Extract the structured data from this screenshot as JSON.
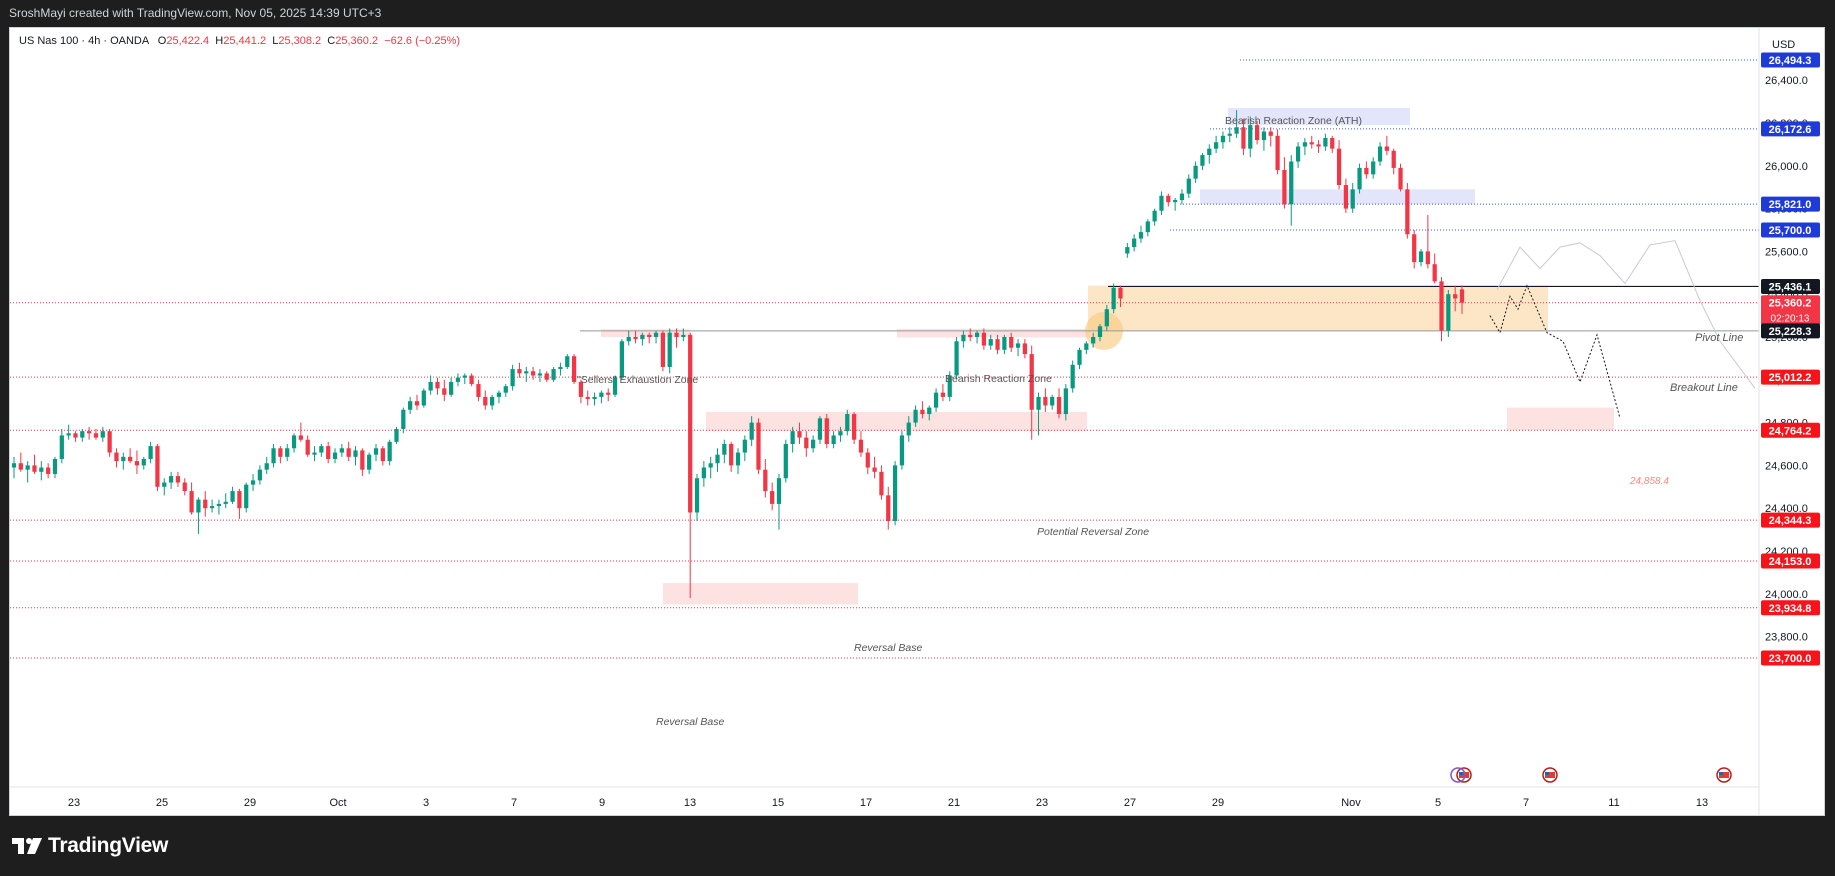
{
  "header": {
    "attribution": "SroshMayi created with TradingView.com, Nov 05, 2025 14:39 UTC+3"
  },
  "symbol": {
    "name": "US Nas 100 · 4h · OANDA",
    "o_label": "O",
    "o": "25,422.4",
    "h_label": "H",
    "h": "25,441.2",
    "l_label": "L",
    "l": "25,308.2",
    "c_label": "C",
    "c": "25,360.2",
    "change": "−62.6 (−0.25%)"
  },
  "footer": {
    "brand": "TradingView"
  },
  "colors": {
    "up": "#089981",
    "down": "#f23645",
    "axis_text": "#131722",
    "blue_badge": "#1e3bd8",
    "red_badge": "#f7131a",
    "black_badge": "#131722",
    "zone_pink": "#fde2e2",
    "zone_blue": "#e3e6fb",
    "zone_orange": "#fde6c6"
  },
  "chart_data": {
    "type": "candlestick",
    "timeframe": "4h",
    "currency": "USD",
    "ylim": [
      23650,
      26650
    ],
    "y_ticks": [
      "23,800.0",
      "24,000.0",
      "24,200.0",
      "24,400.0",
      "24,600.0",
      "24,800.0",
      "25,000.0",
      "25,200.0",
      "25,400.0",
      "25,600.0",
      "25,800.0",
      "26,000.0",
      "26,200.0",
      "26,400.0"
    ],
    "x_ticks": [
      "23",
      "25",
      "29",
      "Oct",
      "3",
      "7",
      "9",
      "13",
      "15",
      "17",
      "21",
      "23",
      "27",
      "29",
      "Nov",
      "5",
      "7",
      "11",
      "13"
    ],
    "price_labels": [
      {
        "text": "26,494.3",
        "value": 26494.3,
        "style": "blue"
      },
      {
        "text": "26,172.6",
        "value": 26172.6,
        "style": "blue"
      },
      {
        "text": "25,821.0",
        "value": 25821.0,
        "style": "blue"
      },
      {
        "text": "25,700.0",
        "value": 25700.0,
        "style": "blue"
      },
      {
        "text": "25,436.1",
        "value": 25436.1,
        "style": "black"
      },
      {
        "text": "25,360.2",
        "value": 25360.2,
        "style": "current",
        "countdown": "02:20:13"
      },
      {
        "text": "25,228.3",
        "value": 25228.3,
        "style": "black"
      },
      {
        "text": "25,012.2",
        "value": 25012.2,
        "style": "red"
      },
      {
        "text": "24,764.2",
        "value": 24764.2,
        "style": "red"
      },
      {
        "text": "24,344.3",
        "value": 24344.3,
        "style": "red"
      },
      {
        "text": "24,153.0",
        "value": 24153.0,
        "style": "red"
      },
      {
        "text": "23,934.8",
        "value": 23934.8,
        "style": "red"
      },
      {
        "text": "23,700.0",
        "value": 23700.0,
        "style": "red"
      }
    ],
    "annotations": {
      "ath_zone": "Bearish Reaction Zone (ATH)",
      "sellers_zone": "\"Sellers\" Exhaustion Zone",
      "bearish_zone": "Bearish Reaction Zone",
      "potential_reversal": "Potential Reversal Zone",
      "reversal_base_1": "Reversal Base",
      "reversal_base_2": "Reversal Base",
      "pivot_line": "Pivot Line",
      "breakout_line": "Breakout Line",
      "target": "24,858.4"
    },
    "candles": [
      [
        24590,
        24640,
        24540,
        24610
      ],
      [
        24610,
        24660,
        24570,
        24580
      ],
      [
        24580,
        24620,
        24520,
        24600
      ],
      [
        24600,
        24650,
        24560,
        24570
      ],
      [
        24570,
        24620,
        24530,
        24590
      ],
      [
        24590,
        24610,
        24540,
        24560
      ],
      [
        24560,
        24640,
        24540,
        24630
      ],
      [
        24630,
        24770,
        24610,
        24740
      ],
      [
        24740,
        24790,
        24720,
        24750
      ],
      [
        24750,
        24760,
        24710,
        24730
      ],
      [
        24730,
        24770,
        24710,
        24760
      ],
      [
        24760,
        24780,
        24720,
        24750
      ],
      [
        24750,
        24770,
        24720,
        24730
      ],
      [
        24730,
        24780,
        24710,
        24760
      ],
      [
        24760,
        24770,
        24640,
        24660
      ],
      [
        24660,
        24680,
        24590,
        24620
      ],
      [
        24620,
        24660,
        24580,
        24640
      ],
      [
        24640,
        24680,
        24610,
        24620
      ],
      [
        24620,
        24670,
        24560,
        24600
      ],
      [
        24600,
        24640,
        24580,
        24630
      ],
      [
        24630,
        24710,
        24610,
        24690
      ],
      [
        24690,
        24700,
        24480,
        24500
      ],
      [
        24500,
        24540,
        24460,
        24520
      ],
      [
        24520,
        24570,
        24490,
        24550
      ],
      [
        24550,
        24570,
        24500,
        24520
      ],
      [
        24520,
        24540,
        24460,
        24480
      ],
      [
        24480,
        24520,
        24370,
        24380
      ],
      [
        24380,
        24450,
        24280,
        24440
      ],
      [
        24440,
        24480,
        24360,
        24400
      ],
      [
        24400,
        24440,
        24380,
        24410
      ],
      [
        24410,
        24440,
        24370,
        24420
      ],
      [
        24420,
        24470,
        24400,
        24430
      ],
      [
        24430,
        24500,
        24420,
        24480
      ],
      [
        24480,
        24490,
        24350,
        24400
      ],
      [
        24400,
        24520,
        24380,
        24510
      ],
      [
        24510,
        24560,
        24480,
        24530
      ],
      [
        24530,
        24600,
        24510,
        24580
      ],
      [
        24580,
        24640,
        24560,
        24610
      ],
      [
        24610,
        24700,
        24590,
        24680
      ],
      [
        24680,
        24690,
        24610,
        24640
      ],
      [
        24640,
        24700,
        24620,
        24680
      ],
      [
        24680,
        24750,
        24660,
        24740
      ],
      [
        24740,
        24800,
        24710,
        24720
      ],
      [
        24720,
        24740,
        24640,
        24650
      ],
      [
        24650,
        24690,
        24620,
        24660
      ],
      [
        24660,
        24700,
        24640,
        24690
      ],
      [
        24690,
        24710,
        24610,
        24630
      ],
      [
        24630,
        24680,
        24610,
        24660
      ],
      [
        24660,
        24700,
        24640,
        24680
      ],
      [
        24680,
        24710,
        24620,
        24640
      ],
      [
        24640,
        24690,
        24600,
        24670
      ],
      [
        24670,
        24680,
        24550,
        24580
      ],
      [
        24580,
        24660,
        24560,
        24650
      ],
      [
        24650,
        24700,
        24620,
        24680
      ],
      [
        24680,
        24690,
        24600,
        24620
      ],
      [
        24620,
        24720,
        24600,
        24710
      ],
      [
        24710,
        24780,
        24700,
        24770
      ],
      [
        24770,
        24870,
        24750,
        24860
      ],
      [
        24860,
        24920,
        24840,
        24900
      ],
      [
        24900,
        24930,
        24860,
        24880
      ],
      [
        24880,
        24960,
        24870,
        24950
      ],
      [
        24950,
        25020,
        24930,
        24990
      ],
      [
        24990,
        25010,
        24930,
        24960
      ],
      [
        24960,
        25000,
        24900,
        24930
      ],
      [
        24930,
        25010,
        24920,
        24990
      ],
      [
        24990,
        25030,
        24970,
        25010
      ],
      [
        25010,
        25030,
        24980,
        25020
      ],
      [
        25020,
        25030,
        24970,
        24980
      ],
      [
        24980,
        25000,
        24900,
        24920
      ],
      [
        24920,
        24950,
        24860,
        24880
      ],
      [
        24880,
        24930,
        24860,
        24920
      ],
      [
        24920,
        24950,
        24890,
        24940
      ],
      [
        24940,
        24980,
        24920,
        24970
      ],
      [
        24970,
        25070,
        24950,
        25050
      ],
      [
        25050,
        25080,
        25010,
        25030
      ],
      [
        25030,
        25060,
        24990,
        25040
      ],
      [
        25040,
        25060,
        25000,
        25020
      ],
      [
        25020,
        25050,
        24990,
        25030
      ],
      [
        25030,
        25040,
        24990,
        25000
      ],
      [
        25000,
        25060,
        24990,
        25050
      ],
      [
        25050,
        25080,
        25020,
        25060
      ],
      [
        25060,
        25120,
        25050,
        25110
      ],
      [
        25110,
        25120,
        24980,
        24990
      ],
      [
        24990,
        25000,
        24890,
        24920
      ],
      [
        24920,
        24950,
        24880,
        24910
      ],
      [
        24910,
        24940,
        24880,
        24920
      ],
      [
        24920,
        24950,
        24890,
        24940
      ],
      [
        24940,
        24960,
        24900,
        24930
      ],
      [
        24930,
        25020,
        24920,
        25010
      ],
      [
        25010,
        25190,
        25000,
        25180
      ],
      [
        25180,
        25230,
        25160,
        25200
      ],
      [
        25200,
        25230,
        25170,
        25190
      ],
      [
        25190,
        25220,
        25160,
        25210
      ],
      [
        25210,
        25220,
        25170,
        25200
      ],
      [
        25200,
        25230,
        25170,
        25220
      ],
      [
        25220,
        25230,
        25040,
        25060
      ],
      [
        25060,
        25240,
        25030,
        25220
      ],
      [
        25220,
        25240,
        25150,
        25200
      ],
      [
        25200,
        25240,
        25180,
        25210
      ],
      [
        25210,
        25220,
        23980,
        24380
      ],
      [
        24380,
        24560,
        24340,
        24540
      ],
      [
        24540,
        24620,
        24500,
        24590
      ],
      [
        24590,
        24640,
        24540,
        24610
      ],
      [
        24610,
        24680,
        24570,
        24650
      ],
      [
        24650,
        24720,
        24610,
        24700
      ],
      [
        24700,
        24710,
        24570,
        24600
      ],
      [
        24600,
        24680,
        24560,
        24660
      ],
      [
        24660,
        24740,
        24620,
        24720
      ],
      [
        24720,
        24830,
        24690,
        24800
      ],
      [
        24800,
        24820,
        24560,
        24580
      ],
      [
        24580,
        24630,
        24450,
        24480
      ],
      [
        24480,
        24520,
        24390,
        24420
      ],
      [
        24420,
        24560,
        24300,
        24540
      ],
      [
        24540,
        24720,
        24520,
        24700
      ],
      [
        24700,
        24780,
        24660,
        24760
      ],
      [
        24760,
        24800,
        24700,
        24730
      ],
      [
        24730,
        24760,
        24640,
        24680
      ],
      [
        24680,
        24740,
        24660,
        24720
      ],
      [
        24720,
        24830,
        24700,
        24820
      ],
      [
        24820,
        24840,
        24680,
        24700
      ],
      [
        24700,
        24760,
        24680,
        24740
      ],
      [
        24740,
        24780,
        24710,
        24760
      ],
      [
        24760,
        24860,
        24740,
        24840
      ],
      [
        24840,
        24850,
        24700,
        24720
      ],
      [
        24720,
        24760,
        24640,
        24660
      ],
      [
        24660,
        24680,
        24560,
        24590
      ],
      [
        24590,
        24640,
        24540,
        24570
      ],
      [
        24570,
        24600,
        24440,
        24460
      ],
      [
        24460,
        24500,
        24300,
        24340
      ],
      [
        24340,
        24620,
        24320,
        24600
      ],
      [
        24600,
        24760,
        24580,
        24740
      ],
      [
        24740,
        24830,
        24710,
        24800
      ],
      [
        24800,
        24880,
        24780,
        24860
      ],
      [
        24860,
        24900,
        24820,
        24840
      ],
      [
        24840,
        24880,
        24810,
        24870
      ],
      [
        24870,
        24960,
        24850,
        24940
      ],
      [
        24940,
        24980,
        24900,
        24920
      ],
      [
        24920,
        25040,
        24900,
        25020
      ],
      [
        25020,
        25200,
        25000,
        25180
      ],
      [
        25180,
        25230,
        25150,
        25210
      ],
      [
        25210,
        25240,
        25180,
        25200
      ],
      [
        25200,
        25230,
        25170,
        25220
      ],
      [
        25220,
        25240,
        25140,
        25160
      ],
      [
        25160,
        25210,
        25140,
        25190
      ],
      [
        25190,
        25210,
        25120,
        25140
      ],
      [
        25140,
        25210,
        25120,
        25200
      ],
      [
        25200,
        25220,
        25130,
        25150
      ],
      [
        25150,
        25190,
        25110,
        25170
      ],
      [
        25170,
        25190,
        25100,
        25120
      ],
      [
        25120,
        25160,
        24720,
        24860
      ],
      [
        24860,
        24940,
        24740,
        24920
      ],
      [
        24920,
        24960,
        24850,
        24880
      ],
      [
        24880,
        24930,
        24860,
        24920
      ],
      [
        24920,
        24960,
        24820,
        24840
      ],
      [
        24840,
        24980,
        24810,
        24960
      ],
      [
        24960,
        25090,
        24940,
        25070
      ],
      [
        25070,
        25150,
        25050,
        25140
      ],
      [
        25140,
        25180,
        25120,
        25170
      ],
      [
        25170,
        25220,
        25150,
        25200
      ],
      [
        25200,
        25260,
        25180,
        25250
      ],
      [
        25250,
        25350,
        25230,
        25330
      ],
      [
        25330,
        25450,
        25310,
        25430
      ],
      [
        25430,
        25440,
        25340,
        25380
      ],
      [
        25590,
        25640,
        25570,
        25620
      ],
      [
        25620,
        25680,
        25600,
        25660
      ],
      [
        25660,
        25720,
        25640,
        25690
      ],
      [
        25690,
        25750,
        25670,
        25740
      ],
      [
        25740,
        25800,
        25720,
        25790
      ],
      [
        25790,
        25880,
        25770,
        25860
      ],
      [
        25860,
        25870,
        25810,
        25830
      ],
      [
        25830,
        25850,
        25790,
        25840
      ],
      [
        25840,
        25890,
        25820,
        25870
      ],
      [
        25870,
        25960,
        25850,
        25940
      ],
      [
        25940,
        26020,
        25920,
        26000
      ],
      [
        26000,
        26060,
        25980,
        26050
      ],
      [
        26050,
        26100,
        26010,
        26080
      ],
      [
        26080,
        26140,
        26060,
        26110
      ],
      [
        26110,
        26160,
        26080,
        26140
      ],
      [
        26140,
        26180,
        26110,
        26150
      ],
      [
        26150,
        26260,
        26130,
        26180
      ],
      [
        26180,
        26220,
        26050,
        26080
      ],
      [
        26080,
        26230,
        26040,
        26190
      ],
      [
        26190,
        26210,
        26100,
        26120
      ],
      [
        26120,
        26180,
        26070,
        26160
      ],
      [
        26160,
        26180,
        26090,
        26140
      ],
      [
        26140,
        26170,
        25960,
        25980
      ],
      [
        25980,
        26040,
        25800,
        25820
      ],
      [
        25820,
        26050,
        25720,
        26020
      ],
      [
        26020,
        26110,
        25990,
        26090
      ],
      [
        26090,
        26130,
        26050,
        26110
      ],
      [
        26110,
        26140,
        26080,
        26100
      ],
      [
        26100,
        26120,
        26060,
        26090
      ],
      [
        26090,
        26150,
        26070,
        26130
      ],
      [
        26130,
        26140,
        26060,
        26080
      ],
      [
        26080,
        26120,
        25890,
        25910
      ],
      [
        25910,
        25940,
        25780,
        25800
      ],
      [
        25800,
        25920,
        25780,
        25890
      ],
      [
        25890,
        26010,
        25870,
        25990
      ],
      [
        25990,
        26020,
        25940,
        25960
      ],
      [
        25960,
        26040,
        25940,
        26020
      ],
      [
        26020,
        26110,
        26000,
        26090
      ],
      [
        26090,
        26140,
        26050,
        26070
      ],
      [
        26070,
        26080,
        25960,
        25990
      ],
      [
        25990,
        26010,
        25880,
        25890
      ],
      [
        25890,
        25920,
        25660,
        25680
      ],
      [
        25680,
        25700,
        25520,
        25550
      ],
      [
        25550,
        25610,
        25530,
        25600
      ],
      [
        25600,
        25770,
        25520,
        25540
      ],
      [
        25540,
        25590,
        25450,
        25460
      ],
      [
        25460,
        25480,
        25180,
        25230
      ],
      [
        25230,
        25420,
        25200,
        25400
      ],
      [
        25400,
        25440,
        25320,
        25380
      ],
      [
        25422.4,
        25441.2,
        25308.2,
        25360.2
      ]
    ]
  }
}
